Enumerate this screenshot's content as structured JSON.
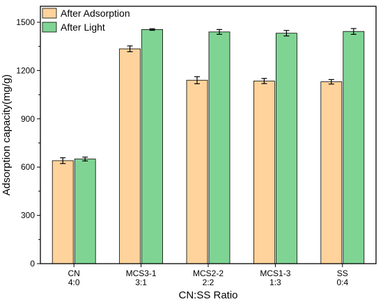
{
  "chart_data": {
    "type": "bar",
    "xlabel": "CN:SS Ratio",
    "ylabel": "Adsorption capacity(mg/g)",
    "ylim": [
      0,
      1500
    ],
    "yticks": [
      0,
      300,
      600,
      900,
      1200,
      1500
    ],
    "categories": [
      {
        "name": "CN",
        "ratio": "4:0"
      },
      {
        "name": "MCS3-1",
        "ratio": "3:1"
      },
      {
        "name": "MCS2-2",
        "ratio": "2:2"
      },
      {
        "name": "MCS1-3",
        "ratio": "1:3"
      },
      {
        "name": "SS",
        "ratio": "0:4"
      }
    ],
    "series": [
      {
        "name": "After Adsorption",
        "color": "#FFD39B",
        "values": [
          640,
          1335,
          1140,
          1135,
          1130
        ],
        "errors": [
          18,
          18,
          22,
          16,
          14
        ]
      },
      {
        "name": "After Light",
        "color": "#7FD493",
        "values": [
          650,
          1455,
          1440,
          1432,
          1443
        ],
        "errors": [
          12,
          5,
          15,
          17,
          18
        ]
      }
    ],
    "legend_position": "top-left",
    "grid": false
  }
}
